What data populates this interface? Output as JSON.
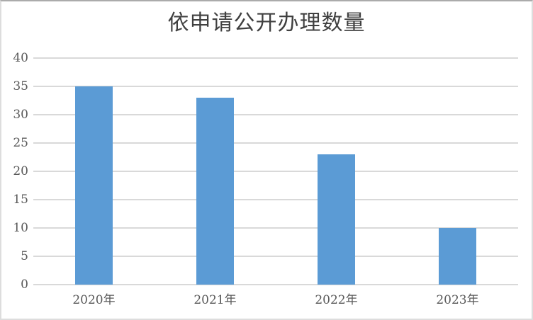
{
  "chart_data": {
    "type": "bar",
    "title": "依申请公开办理数量",
    "categories": [
      "2020年",
      "2021年",
      "2022年",
      "2023年"
    ],
    "values": [
      35,
      33,
      23,
      10
    ],
    "xlabel": "",
    "ylabel": "",
    "ylim": [
      0,
      40
    ],
    "ytick_step": 5,
    "ytick_labels": [
      "0",
      "5",
      "10",
      "15",
      "20",
      "25",
      "30",
      "35",
      "40"
    ],
    "grid": "horizontal",
    "legend_position": "none"
  },
  "style": {
    "bar_color": "#5B9BD5",
    "gridline_color": "#D9D9D9",
    "tick_label_color": "#595959",
    "title_color": "#404040",
    "background_color": "#FFFFFF",
    "frame_border_color": "#ABABAB"
  }
}
